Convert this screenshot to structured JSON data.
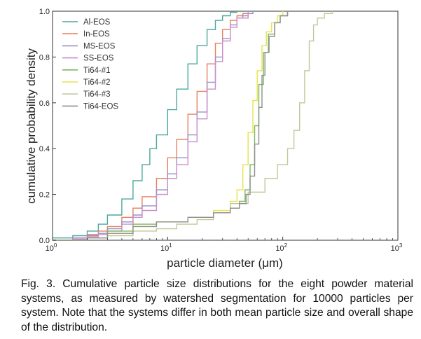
{
  "chart_data": {
    "type": "line",
    "title": "",
    "xlabel": "particle diameter (μm)",
    "ylabel": "cumulative probability density",
    "xscale": "log",
    "xlim": [
      1,
      1000
    ],
    "ylim": [
      0,
      1.0
    ],
    "x_ticks": [
      {
        "value": 1,
        "base": "10",
        "exp": "0"
      },
      {
        "value": 10,
        "base": "10",
        "exp": "1"
      },
      {
        "value": 100,
        "base": "10",
        "exp": "2"
      },
      {
        "value": 1000,
        "base": "10",
        "exp": "3"
      }
    ],
    "y_ticks": [
      "0.0",
      "0.2",
      "0.4",
      "0.6",
      "0.8",
      "1.0"
    ],
    "grid": false,
    "legend_position": "top-left",
    "series": [
      {
        "name": "Al-EOS",
        "color": "#4aa89d",
        "points": [
          [
            1,
            0.01
          ],
          [
            1.5,
            0.02
          ],
          [
            2,
            0.04
          ],
          [
            2.5,
            0.07
          ],
          [
            3,
            0.11
          ],
          [
            4,
            0.18
          ],
          [
            5,
            0.26
          ],
          [
            6,
            0.33
          ],
          [
            7,
            0.4
          ],
          [
            8,
            0.46
          ],
          [
            10,
            0.57
          ],
          [
            12,
            0.66
          ],
          [
            15,
            0.77
          ],
          [
            18,
            0.85
          ],
          [
            22,
            0.92
          ],
          [
            26,
            0.96
          ],
          [
            30,
            0.98
          ],
          [
            35,
            0.995
          ],
          [
            40,
            1.0
          ]
        ]
      },
      {
        "name": "In-EOS",
        "color": "#e8805f",
        "points": [
          [
            1,
            0.0
          ],
          [
            1.5,
            0.01
          ],
          [
            2,
            0.025
          ],
          [
            2.5,
            0.04
          ],
          [
            3,
            0.06
          ],
          [
            4,
            0.1
          ],
          [
            5,
            0.14
          ],
          [
            6,
            0.19
          ],
          [
            8,
            0.27
          ],
          [
            10,
            0.36
          ],
          [
            12,
            0.44
          ],
          [
            15,
            0.55
          ],
          [
            18,
            0.65
          ],
          [
            22,
            0.77
          ],
          [
            26,
            0.86
          ],
          [
            30,
            0.92
          ],
          [
            35,
            0.96
          ],
          [
            40,
            0.98
          ],
          [
            50,
            1.0
          ]
        ]
      },
      {
        "name": "MS-EOS",
        "color": "#9b8fc4",
        "points": [
          [
            1,
            0.0
          ],
          [
            1.5,
            0.01
          ],
          [
            2,
            0.02
          ],
          [
            2.5,
            0.03
          ],
          [
            3,
            0.05
          ],
          [
            4,
            0.08
          ],
          [
            5,
            0.11
          ],
          [
            6,
            0.15
          ],
          [
            8,
            0.22
          ],
          [
            10,
            0.29
          ],
          [
            12,
            0.36
          ],
          [
            15,
            0.46
          ],
          [
            18,
            0.56
          ],
          [
            22,
            0.69
          ],
          [
            26,
            0.8
          ],
          [
            30,
            0.88
          ],
          [
            35,
            0.94
          ],
          [
            40,
            0.97
          ],
          [
            45,
            0.99
          ],
          [
            55,
            1.0
          ]
        ]
      },
      {
        "name": "SS-EOS",
        "color": "#c98fc9",
        "points": [
          [
            1,
            0.0
          ],
          [
            1.5,
            0.005
          ],
          [
            2,
            0.015
          ],
          [
            2.5,
            0.025
          ],
          [
            3,
            0.04
          ],
          [
            4,
            0.07
          ],
          [
            5,
            0.1
          ],
          [
            6,
            0.13
          ],
          [
            8,
            0.2
          ],
          [
            10,
            0.27
          ],
          [
            12,
            0.33
          ],
          [
            15,
            0.43
          ],
          [
            18,
            0.53
          ],
          [
            22,
            0.66
          ],
          [
            26,
            0.78
          ],
          [
            30,
            0.87
          ],
          [
            35,
            0.93
          ],
          [
            40,
            0.97
          ],
          [
            50,
            1.0
          ]
        ]
      },
      {
        "name": "Ti64-#1",
        "color": "#7db85a",
        "points": [
          [
            1,
            0.0
          ],
          [
            2,
            0.01
          ],
          [
            3,
            0.04
          ],
          [
            5,
            0.07
          ],
          [
            8,
            0.08
          ],
          [
            15,
            0.1
          ],
          [
            25,
            0.12
          ],
          [
            35,
            0.14
          ],
          [
            42,
            0.17
          ],
          [
            47,
            0.22
          ],
          [
            52,
            0.33
          ],
          [
            57,
            0.5
          ],
          [
            62,
            0.68
          ],
          [
            68,
            0.82
          ],
          [
            75,
            0.9
          ],
          [
            85,
            0.95
          ],
          [
            95,
            0.98
          ],
          [
            110,
            1.0
          ]
        ]
      },
      {
        "name": "Ti64-#2",
        "color": "#e9e24e",
        "points": [
          [
            1,
            0.0
          ],
          [
            2,
            0.01
          ],
          [
            3,
            0.03
          ],
          [
            5,
            0.06
          ],
          [
            8,
            0.08
          ],
          [
            15,
            0.1
          ],
          [
            25,
            0.13
          ],
          [
            35,
            0.17
          ],
          [
            40,
            0.22
          ],
          [
            45,
            0.33
          ],
          [
            50,
            0.47
          ],
          [
            55,
            0.61
          ],
          [
            60,
            0.74
          ],
          [
            66,
            0.85
          ],
          [
            72,
            0.91
          ],
          [
            80,
            0.95
          ],
          [
            90,
            0.98
          ],
          [
            100,
            1.0
          ]
        ]
      },
      {
        "name": "Ti64-#3",
        "color": "#c4c79a",
        "points": [
          [
            1,
            0.0
          ],
          [
            2,
            0.01
          ],
          [
            3,
            0.02
          ],
          [
            5,
            0.04
          ],
          [
            8,
            0.05
          ],
          [
            12,
            0.07
          ],
          [
            18,
            0.09
          ],
          [
            25,
            0.12
          ],
          [
            35,
            0.16
          ],
          [
            50,
            0.21
          ],
          [
            70,
            0.27
          ],
          [
            90,
            0.33
          ],
          [
            110,
            0.4
          ],
          [
            125,
            0.48
          ],
          [
            140,
            0.6
          ],
          [
            155,
            0.74
          ],
          [
            170,
            0.87
          ],
          [
            185,
            0.94
          ],
          [
            200,
            0.97
          ],
          [
            230,
            0.99
          ],
          [
            270,
            1.0
          ]
        ]
      },
      {
        "name": "Ti64-EOS",
        "color": "#8f8f8f",
        "points": [
          [
            1,
            0.0
          ],
          [
            2,
            0.01
          ],
          [
            3,
            0.03
          ],
          [
            5,
            0.06
          ],
          [
            8,
            0.08
          ],
          [
            15,
            0.1
          ],
          [
            25,
            0.12
          ],
          [
            35,
            0.14
          ],
          [
            42,
            0.16
          ],
          [
            48,
            0.2
          ],
          [
            52,
            0.28
          ],
          [
            57,
            0.42
          ],
          [
            62,
            0.58
          ],
          [
            66,
            0.72
          ],
          [
            70,
            0.82
          ],
          [
            76,
            0.89
          ],
          [
            85,
            0.95
          ],
          [
            95,
            0.98
          ],
          [
            110,
            1.0
          ]
        ]
      }
    ]
  },
  "caption": {
    "text": "Fig. 3. Cumulative particle size distributions for the eight powder material systems, as measured by watershed segmentation for 10000 particles per system. Note that the systems differ in both mean particle size and overall shape of the distribution."
  }
}
